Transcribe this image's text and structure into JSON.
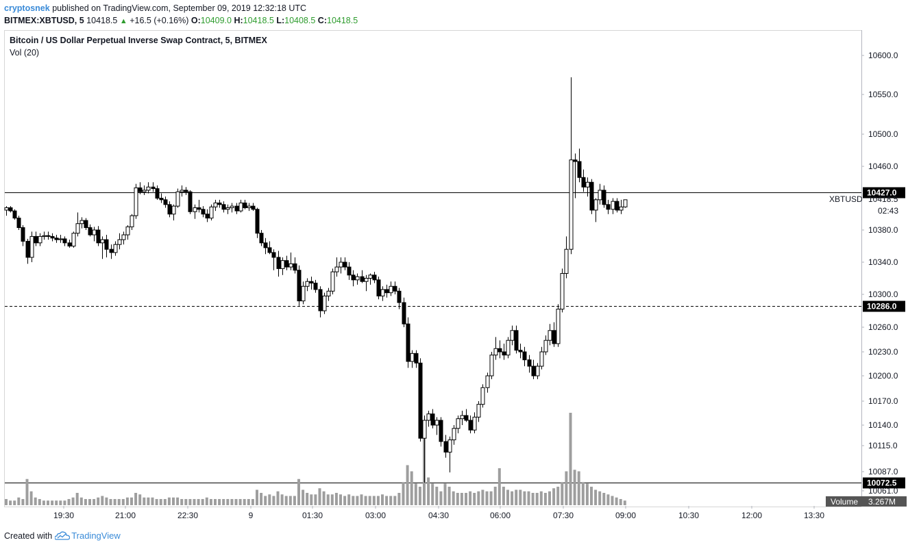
{
  "header": {
    "author": "cryptosnek",
    "published_text": "published on TradingView.com, September 09, 2019 12:32:18 UTC",
    "symbol": "BITMEX:XBTUSD, 5",
    "last": "10418.5",
    "change": "+16.5 (+0.16%)",
    "o_label": "O:",
    "o": "10409.0",
    "h_label": "H:",
    "h": "10418.5",
    "l_label": "L:",
    "l": "10408.5",
    "c_label": "C:",
    "c": "10418.5"
  },
  "pane": {
    "title": "Bitcoin / US Dollar Perpetual Inverse Swap Contract, 5, BITMEX",
    "indicator": "Vol (20)"
  },
  "footer": {
    "created_with": "Created with",
    "brand": "TradingView"
  },
  "colors": {
    "up_body": "#ffffff",
    "down_body": "#000000",
    "wick": "#000000",
    "volume": "#9e9e9e",
    "accent": "#3a8bd8"
  },
  "chart_data": {
    "type": "candlestick",
    "symbol_tag": "XBTUSD",
    "countdown": "02:43",
    "y_ticks": [
      "10600.0",
      "10550.0",
      "10500.0",
      "10460.0",
      "10380.0",
      "10340.0",
      "10300.0",
      "10260.0",
      "10230.0",
      "10200.0",
      "10170.0",
      "10140.0",
      "10115.0",
      "10087.0",
      "10061.0"
    ],
    "x_ticks": [
      "19:30",
      "21:00",
      "22:30",
      "9",
      "01:30",
      "03:00",
      "04:30",
      "06:00",
      "07:30",
      "09:00",
      "10:30",
      "12:00",
      "13:30"
    ],
    "levels": [
      {
        "value": 10427.0,
        "label": "10427.0",
        "style": "solid"
      },
      {
        "value": 10286.0,
        "label": "10286.0",
        "style": "dashed"
      },
      {
        "value": 10072.5,
        "label": "10072.5",
        "style": "solid"
      }
    ],
    "last_price": {
      "value": 10418.5,
      "label": "10418.5"
    },
    "volume_label": "Volume",
    "volume_value": "3.267M",
    "ohlc": [
      [
        10405,
        10410,
        10398,
        10408
      ],
      [
        10408,
        10410,
        10402,
        10404
      ],
      [
        10404,
        10406,
        10393,
        10395
      ],
      [
        10395,
        10398,
        10380,
        10383
      ],
      [
        10383,
        10386,
        10360,
        10366
      ],
      [
        10366,
        10369,
        10338,
        10346
      ],
      [
        10346,
        10378,
        10340,
        10372
      ],
      [
        10372,
        10378,
        10360,
        10364
      ],
      [
        10364,
        10376,
        10360,
        10372
      ],
      [
        10372,
        10378,
        10368,
        10373
      ],
      [
        10373,
        10378,
        10368,
        10372
      ],
      [
        10372,
        10376,
        10366,
        10370
      ],
      [
        10370,
        10374,
        10364,
        10368
      ],
      [
        10368,
        10374,
        10364,
        10369
      ],
      [
        10369,
        10372,
        10360,
        10364
      ],
      [
        10364,
        10368,
        10358,
        10360
      ],
      [
        10360,
        10378,
        10358,
        10376
      ],
      [
        10376,
        10402,
        10372,
        10388
      ],
      [
        10388,
        10396,
        10382,
        10392
      ],
      [
        10392,
        10395,
        10380,
        10383
      ],
      [
        10383,
        10387,
        10372,
        10374
      ],
      [
        10374,
        10384,
        10366,
        10380
      ],
      [
        10380,
        10385,
        10360,
        10364
      ],
      [
        10364,
        10372,
        10344,
        10368
      ],
      [
        10368,
        10374,
        10346,
        10356
      ],
      [
        10356,
        10362,
        10344,
        10352
      ],
      [
        10352,
        10366,
        10348,
        10362
      ],
      [
        10362,
        10376,
        10356,
        10368
      ],
      [
        10368,
        10378,
        10362,
        10374
      ],
      [
        10374,
        10386,
        10368,
        10384
      ],
      [
        10384,
        10400,
        10380,
        10398
      ],
      [
        10398,
        10438,
        10394,
        10433
      ],
      [
        10433,
        10440,
        10425,
        10428
      ],
      [
        10428,
        10436,
        10424,
        10430
      ],
      [
        10430,
        10440,
        10426,
        10434
      ],
      [
        10434,
        10440,
        10428,
        10432
      ],
      [
        10432,
        10436,
        10418,
        10420
      ],
      [
        10420,
        10426,
        10414,
        10418
      ],
      [
        10418,
        10422,
        10408,
        10412
      ],
      [
        10412,
        10416,
        10396,
        10400
      ],
      [
        10400,
        10412,
        10392,
        10410
      ],
      [
        10410,
        10432,
        10408,
        10428
      ],
      [
        10428,
        10436,
        10422,
        10430
      ],
      [
        10430,
        10434,
        10424,
        10428
      ],
      [
        10428,
        10430,
        10400,
        10403
      ],
      [
        10403,
        10412,
        10394,
        10408
      ],
      [
        10408,
        10418,
        10402,
        10406
      ],
      [
        10406,
        10410,
        10396,
        10400
      ],
      [
        10400,
        10406,
        10390,
        10395
      ],
      [
        10395,
        10412,
        10392,
        10409
      ],
      [
        10409,
        10418,
        10404,
        10414
      ],
      [
        10414,
        10418,
        10408,
        10412
      ],
      [
        10412,
        10416,
        10402,
        10406
      ],
      [
        10406,
        10412,
        10400,
        10408
      ],
      [
        10408,
        10414,
        10402,
        10410
      ],
      [
        10410,
        10414,
        10400,
        10404
      ],
      [
        10404,
        10418,
        10402,
        10414
      ],
      [
        10414,
        10418,
        10406,
        10408
      ],
      [
        10408,
        10414,
        10404,
        10410
      ],
      [
        10410,
        10414,
        10404,
        10406
      ],
      [
        10406,
        10408,
        10370,
        10376
      ],
      [
        10376,
        10380,
        10360,
        10364
      ],
      [
        10364,
        10370,
        10350,
        10358
      ],
      [
        10358,
        10366,
        10350,
        10352
      ],
      [
        10352,
        10356,
        10330,
        10346
      ],
      [
        10346,
        10354,
        10322,
        10332
      ],
      [
        10332,
        10346,
        10324,
        10342
      ],
      [
        10342,
        10348,
        10330,
        10334
      ],
      [
        10334,
        10352,
        10330,
        10338
      ],
      [
        10338,
        10346,
        10326,
        10330
      ],
      [
        10330,
        10336,
        10286,
        10292
      ],
      [
        10292,
        10316,
        10288,
        10310
      ],
      [
        10310,
        10320,
        10304,
        10316
      ],
      [
        10316,
        10322,
        10306,
        10314
      ],
      [
        10314,
        10318,
        10302,
        10306
      ],
      [
        10306,
        10310,
        10272,
        10280
      ],
      [
        10280,
        10302,
        10276,
        10298
      ],
      [
        10298,
        10308,
        10292,
        10304
      ],
      [
        10304,
        10332,
        10300,
        10328
      ],
      [
        10328,
        10346,
        10322,
        10334
      ],
      [
        10334,
        10346,
        10326,
        10340
      ],
      [
        10340,
        10346,
        10330,
        10334
      ],
      [
        10334,
        10340,
        10318,
        10324
      ],
      [
        10324,
        10330,
        10310,
        10318
      ],
      [
        10318,
        10326,
        10312,
        10322
      ],
      [
        10322,
        10330,
        10314,
        10316
      ],
      [
        10316,
        10324,
        10304,
        10320
      ],
      [
        10320,
        10326,
        10312,
        10324
      ],
      [
        10324,
        10328,
        10314,
        10318
      ],
      [
        10318,
        10322,
        10294,
        10298
      ],
      [
        10298,
        10310,
        10292,
        10306
      ],
      [
        10306,
        10312,
        10296,
        10302
      ],
      [
        10302,
        10316,
        10298,
        10310
      ],
      [
        10310,
        10316,
        10300,
        10304
      ],
      [
        10304,
        10308,
        10282,
        10290
      ],
      [
        10290,
        10296,
        10260,
        10264
      ],
      [
        10264,
        10272,
        10210,
        10218
      ],
      [
        10218,
        10232,
        10210,
        10228
      ],
      [
        10228,
        10232,
        10210,
        10216
      ],
      [
        10216,
        10222,
        10120,
        10124
      ],
      [
        10124,
        10152,
        10072,
        10146
      ],
      [
        10146,
        10158,
        10138,
        10154
      ],
      [
        10154,
        10160,
        10136,
        10140
      ],
      [
        10140,
        10150,
        10128,
        10146
      ],
      [
        10146,
        10150,
        10114,
        10120
      ],
      [
        10120,
        10128,
        10102,
        10108
      ],
      [
        10108,
        10126,
        10086,
        10122
      ],
      [
        10122,
        10140,
        10116,
        10136
      ],
      [
        10136,
        10152,
        10130,
        10148
      ],
      [
        10148,
        10158,
        10140,
        10152
      ],
      [
        10152,
        10160,
        10144,
        10146
      ],
      [
        10146,
        10152,
        10130,
        10134
      ],
      [
        10134,
        10156,
        10130,
        10150
      ],
      [
        10150,
        10170,
        10144,
        10166
      ],
      [
        10166,
        10190,
        10162,
        10186
      ],
      [
        10186,
        10204,
        10180,
        10200
      ],
      [
        10200,
        10230,
        10196,
        10226
      ],
      [
        10226,
        10248,
        10220,
        10234
      ],
      [
        10234,
        10244,
        10222,
        10230
      ],
      [
        10230,
        10240,
        10220,
        10226
      ],
      [
        10226,
        10248,
        10222,
        10244
      ],
      [
        10244,
        10262,
        10238,
        10256
      ],
      [
        10256,
        10262,
        10228,
        10232
      ],
      [
        10232,
        10240,
        10222,
        10230
      ],
      [
        10230,
        10236,
        10212,
        10220
      ],
      [
        10220,
        10226,
        10204,
        10212
      ],
      [
        10212,
        10220,
        10196,
        10200
      ],
      [
        10200,
        10216,
        10196,
        10212
      ],
      [
        10212,
        10236,
        10208,
        10230
      ],
      [
        10230,
        10250,
        10226,
        10244
      ],
      [
        10244,
        10264,
        10238,
        10256
      ],
      [
        10256,
        10266,
        10236,
        10240
      ],
      [
        10240,
        10288,
        10236,
        10282
      ],
      [
        10282,
        10332,
        10278,
        10326
      ],
      [
        10326,
        10372,
        10320,
        10356
      ],
      [
        10356,
        10572,
        10350,
        10468
      ],
      [
        10468,
        10476,
        10420,
        10466
      ],
      [
        10466,
        10482,
        10440,
        10446
      ],
      [
        10446,
        10456,
        10428,
        10434
      ],
      [
        10434,
        10446,
        10422,
        10440
      ],
      [
        10440,
        10444,
        10400,
        10405
      ],
      [
        10405,
        10420,
        10390,
        10418
      ],
      [
        10418,
        10438,
        10412,
        10430
      ],
      [
        10430,
        10436,
        10408,
        10412
      ],
      [
        10412,
        10418,
        10400,
        10406
      ],
      [
        10406,
        10420,
        10400,
        10416
      ],
      [
        10416,
        10420,
        10402,
        10405
      ],
      [
        10405,
        10418,
        10400,
        10409
      ],
      [
        10409,
        10418,
        10408,
        10418
      ]
    ],
    "volume": [
      4,
      3,
      3,
      5,
      4,
      17,
      9,
      5,
      4,
      3,
      3,
      3,
      3,
      3,
      3,
      4,
      5,
      8,
      5,
      4,
      4,
      4,
      5,
      6,
      5,
      4,
      4,
      4,
      4,
      5,
      5,
      8,
      7,
      5,
      5,
      5,
      4,
      4,
      4,
      5,
      5,
      5,
      4,
      4,
      4,
      4,
      4,
      4,
      5,
      4,
      4,
      4,
      4,
      4,
      4,
      4,
      4,
      4,
      4,
      4,
      10,
      8,
      6,
      7,
      6,
      9,
      7,
      6,
      6,
      6,
      17,
      10,
      8,
      7,
      7,
      11,
      9,
      7,
      7,
      8,
      7,
      6,
      7,
      6,
      6,
      7,
      6,
      6,
      6,
      6,
      7,
      6,
      6,
      6,
      8,
      15,
      26,
      22,
      14,
      12,
      55,
      18,
      14,
      12,
      9,
      14,
      12,
      9,
      8,
      8,
      8,
      9,
      8,
      9,
      10,
      9,
      9,
      12,
      24,
      12,
      10,
      9,
      10,
      10,
      9,
      9,
      8,
      8,
      9,
      8,
      9,
      11,
      12,
      15,
      22,
      60,
      23,
      22,
      15,
      14,
      12,
      10,
      9,
      8,
      7,
      6,
      5,
      4,
      3
    ]
  }
}
